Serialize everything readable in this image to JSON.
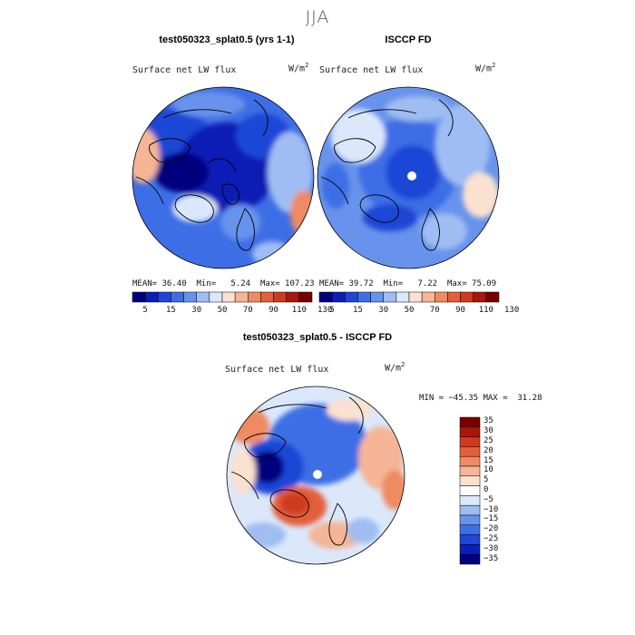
{
  "season": "JJA",
  "colors": {
    "abs_scale": [
      "#00007f",
      "#0a1fb4",
      "#1f46d6",
      "#3e6ee5",
      "#6893ec",
      "#9fbdf2",
      "#dbe8fb",
      "#fbe1cf",
      "#f5b596",
      "#ef8a62",
      "#e35f3b",
      "#cd3a1e",
      "#a8170a",
      "#7a0000"
    ],
    "diff_scale": [
      "#7a0000",
      "#a8170a",
      "#cd3a1e",
      "#e35f3b",
      "#ef8a62",
      "#f5b596",
      "#fbe1cf",
      "#ffffff",
      "#dbe8fb",
      "#9fbdf2",
      "#6893ec",
      "#3e6ee5",
      "#1f46d6",
      "#0a1fb4",
      "#00007f"
    ]
  },
  "panel_left": {
    "title": "test050323_splat0.5 (yrs 1-1)",
    "variable": "Surface net LW flux",
    "units": "W/m",
    "units_exp": "2",
    "mean_label": "MEAN=",
    "mean": "36.40",
    "min_label": "Min=",
    "min": "5.24",
    "max_label": "Max=",
    "max": "107.23",
    "ticks": [
      "5",
      "15",
      "30",
      "50",
      "70",
      "90",
      "110",
      "130"
    ]
  },
  "panel_right": {
    "title": "ISCCP FD",
    "variable": "Surface net LW flux",
    "units": "W/m",
    "units_exp": "2",
    "mean_label": "MEAN=",
    "mean": "39.72",
    "min_label": "Min=",
    "min": "7.22",
    "max_label": "Max=",
    "max": "75.09",
    "ticks": [
      "5",
      "15",
      "30",
      "50",
      "70",
      "90",
      "110",
      "130"
    ]
  },
  "panel_diff": {
    "title": "test050323_splat0.5 - ISCCP FD",
    "variable": "Surface net LW flux",
    "units": "W/m",
    "units_exp": "2",
    "min_label": "MIN =",
    "min": "−45.35",
    "max_label": "MAX =",
    "max": "31.28",
    "ticks": [
      "35",
      "30",
      "25",
      "20",
      "15",
      "10",
      "5",
      "0",
      "−5",
      "−10",
      "−15",
      "−20",
      "−25",
      "−30",
      "−35"
    ]
  }
}
